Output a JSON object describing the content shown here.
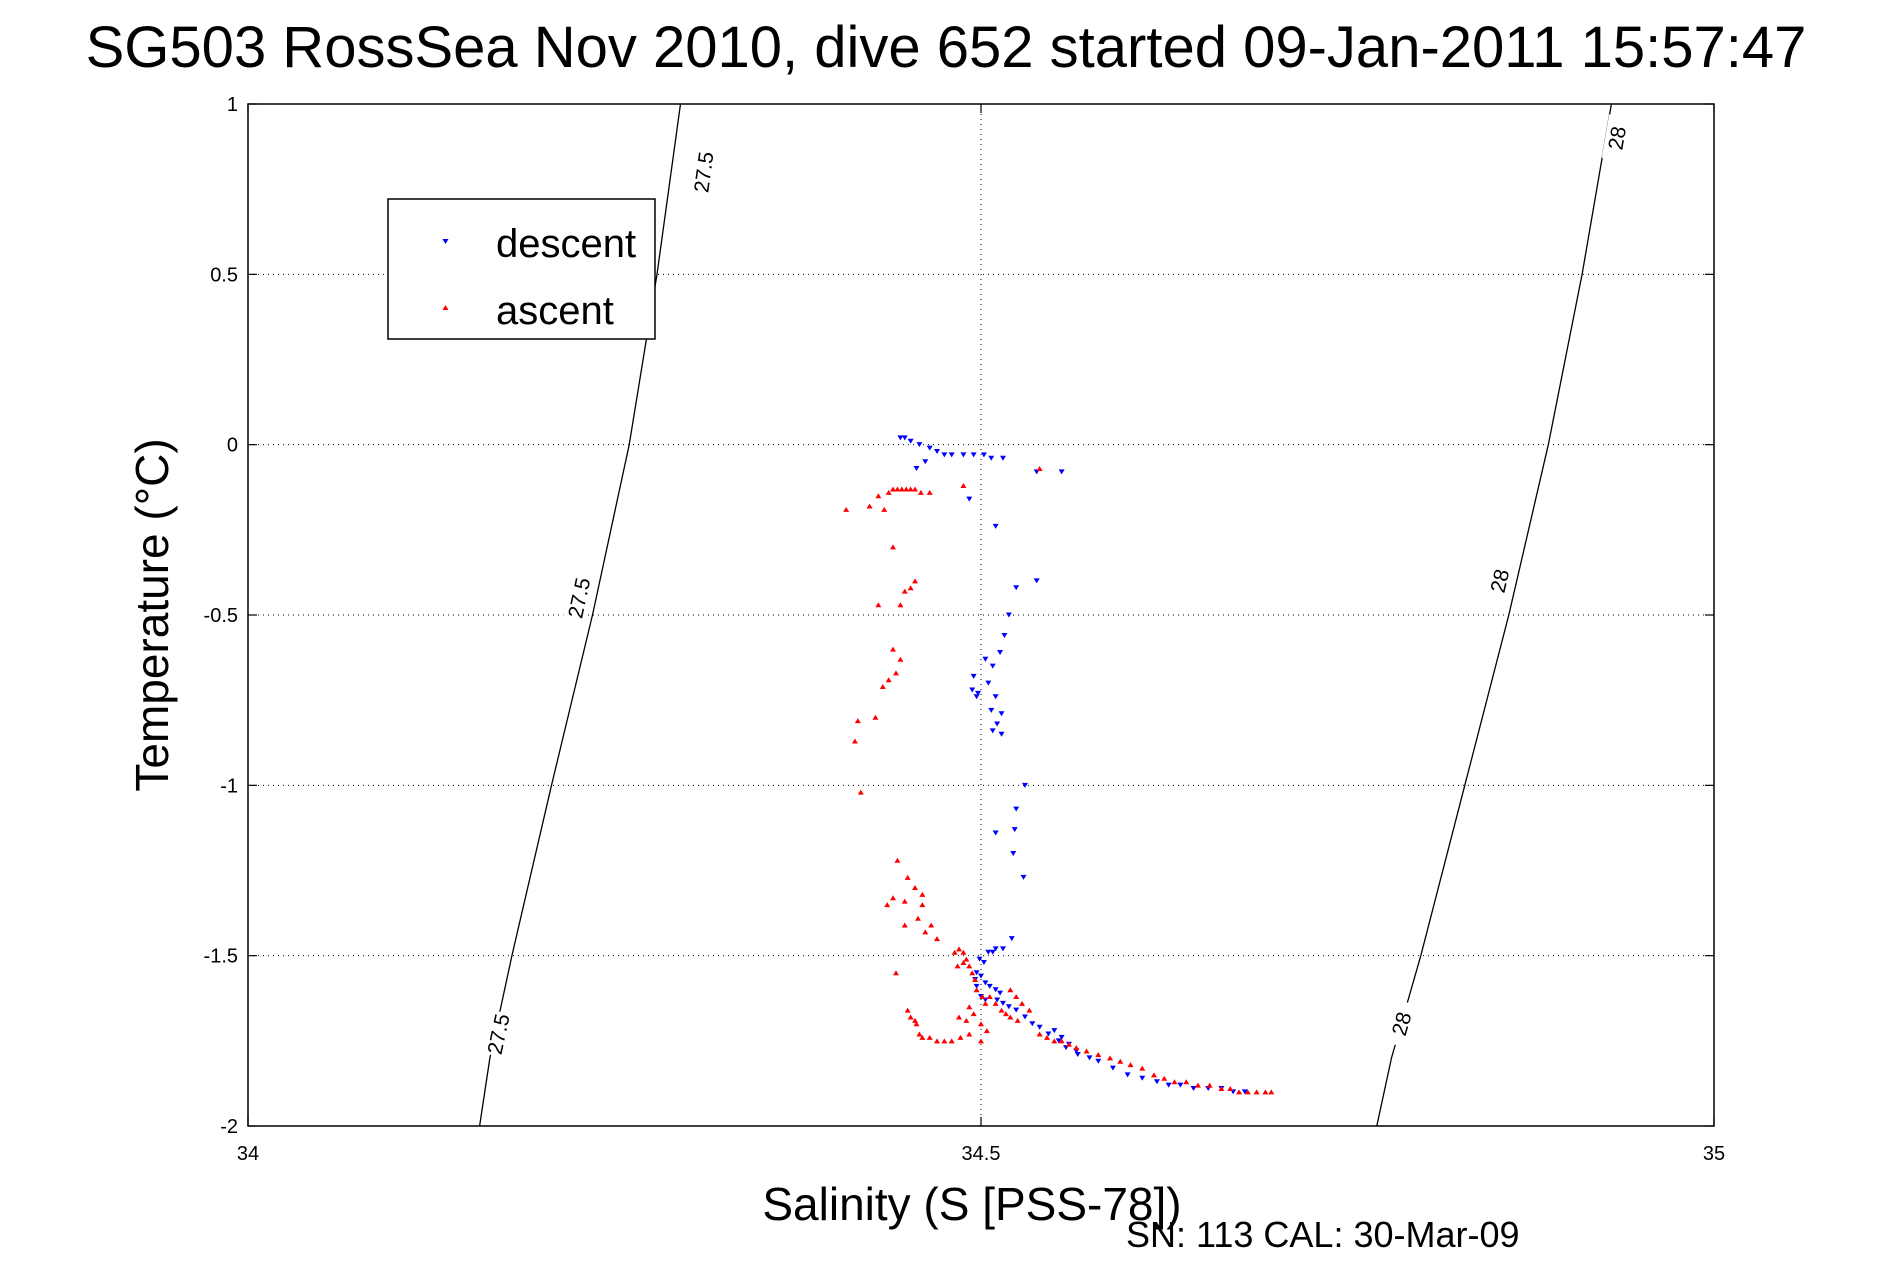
{
  "chart_data": {
    "type": "scatter",
    "title": "SG503 RossSea Nov 2010, dive 652 started 09-Jan-2011 15:57:47",
    "xlabel": "Salinity (S [PSS-78])",
    "ylabel": "Temperature (°C)",
    "xlim": [
      34,
      35
    ],
    "ylim": [
      -2,
      1
    ],
    "x_ticks": [
      "34",
      "34.5",
      "35"
    ],
    "y_ticks": [
      "-2",
      "-1.5",
      "-1",
      "-0.5",
      "0",
      "0.5",
      "1"
    ],
    "grid": true,
    "legend_position": "top-left",
    "footer": "SN: 113  CAL: 30-Mar-09",
    "contours": [
      {
        "level": "27.5",
        "points": [
          [
            34.158,
            -2
          ],
          [
            34.165,
            -1.8
          ],
          [
            34.18,
            -1.5
          ],
          [
            34.207,
            -1.0
          ],
          [
            34.235,
            -0.5
          ],
          [
            34.26,
            0.0
          ],
          [
            34.279,
            0.5
          ],
          [
            34.295,
            1.0
          ]
        ],
        "labels": [
          {
            "x": 34.171,
            "y": -1.73
          },
          {
            "x": 34.226,
            "y": -0.45
          },
          {
            "x": 34.311,
            "y": 0.8
          }
        ]
      },
      {
        "level": "28",
        "points": [
          [
            34.77,
            -2
          ],
          [
            34.78,
            -1.8
          ],
          [
            34.8,
            -1.5
          ],
          [
            34.83,
            -1.0
          ],
          [
            34.86,
            -0.5
          ],
          [
            34.887,
            0.0
          ],
          [
            34.91,
            0.5
          ],
          [
            34.93,
            1.0
          ]
        ],
        "labels": [
          {
            "x": 34.787,
            "y": -1.7
          },
          {
            "x": 34.854,
            "y": -0.4
          },
          {
            "x": 34.934,
            "y": 0.9
          }
        ]
      }
    ],
    "series": [
      {
        "name": "descent",
        "color": "#0000ff",
        "marker": "triangle-down",
        "points": [
          [
            34.445,
            0.02
          ],
          [
            34.448,
            0.02
          ],
          [
            34.452,
            0.01
          ],
          [
            34.458,
            0.0
          ],
          [
            34.465,
            -0.01
          ],
          [
            34.47,
            -0.02
          ],
          [
            34.475,
            -0.03
          ],
          [
            34.48,
            -0.03
          ],
          [
            34.488,
            -0.03
          ],
          [
            34.495,
            -0.03
          ],
          [
            34.502,
            -0.03
          ],
          [
            34.507,
            -0.04
          ],
          [
            34.515,
            -0.04
          ],
          [
            34.456,
            -0.07
          ],
          [
            34.462,
            -0.05
          ],
          [
            34.538,
            -0.08
          ],
          [
            34.555,
            -0.08
          ],
          [
            34.492,
            -0.16
          ],
          [
            34.51,
            -0.24
          ],
          [
            34.538,
            -0.4
          ],
          [
            34.524,
            -0.42
          ],
          [
            34.519,
            -0.5
          ],
          [
            34.516,
            -0.56
          ],
          [
            34.513,
            -0.61
          ],
          [
            34.503,
            -0.63
          ],
          [
            34.508,
            -0.65
          ],
          [
            34.495,
            -0.68
          ],
          [
            34.505,
            -0.7
          ],
          [
            34.494,
            -0.72
          ],
          [
            34.498,
            -0.73
          ],
          [
            34.497,
            -0.74
          ],
          [
            34.51,
            -0.74
          ],
          [
            34.514,
            -0.79
          ],
          [
            34.507,
            -0.78
          ],
          [
            34.511,
            -0.82
          ],
          [
            34.508,
            -0.84
          ],
          [
            34.514,
            -0.85
          ],
          [
            34.53,
            -1.0
          ],
          [
            34.524,
            -1.07
          ],
          [
            34.523,
            -1.13
          ],
          [
            34.51,
            -1.14
          ],
          [
            34.522,
            -1.2
          ],
          [
            34.529,
            -1.27
          ],
          [
            34.521,
            -1.45
          ],
          [
            34.515,
            -1.48
          ],
          [
            34.508,
            -1.49
          ],
          [
            34.505,
            -1.49
          ],
          [
            34.51,
            -1.48
          ],
          [
            34.499,
            -1.51
          ],
          [
            34.502,
            -1.52
          ],
          [
            34.497,
            -1.55
          ],
          [
            34.5,
            -1.56
          ],
          [
            34.496,
            -1.57
          ],
          [
            34.503,
            -1.58
          ],
          [
            34.497,
            -1.59
          ],
          [
            34.506,
            -1.59
          ],
          [
            34.51,
            -1.6
          ],
          [
            34.513,
            -1.61
          ],
          [
            34.5,
            -1.62
          ],
          [
            34.503,
            -1.63
          ],
          [
            34.511,
            -1.63
          ],
          [
            34.515,
            -1.64
          ],
          [
            34.519,
            -1.65
          ],
          [
            34.524,
            -1.66
          ],
          [
            34.53,
            -1.68
          ],
          [
            34.535,
            -1.7
          ],
          [
            34.54,
            -1.71
          ],
          [
            34.546,
            -1.73
          ],
          [
            34.553,
            -1.75
          ],
          [
            34.558,
            -1.77
          ],
          [
            34.565,
            -1.78
          ],
          [
            34.574,
            -1.8
          ],
          [
            34.58,
            -1.81
          ],
          [
            34.59,
            -1.83
          ],
          [
            34.6,
            -1.85
          ],
          [
            34.61,
            -1.86
          ],
          [
            34.62,
            -1.87
          ],
          [
            34.628,
            -1.88
          ],
          [
            34.636,
            -1.88
          ],
          [
            34.645,
            -1.89
          ],
          [
            34.655,
            -1.89
          ],
          [
            34.664,
            -1.89
          ],
          [
            34.672,
            -1.9
          ],
          [
            34.68,
            -1.9
          ],
          [
            34.55,
            -1.72
          ],
          [
            34.555,
            -1.74
          ],
          [
            34.56,
            -1.76
          ],
          [
            34.566,
            -1.79
          ]
        ]
      },
      {
        "name": "ascent",
        "color": "#ff0000",
        "marker": "triangle-up",
        "points": [
          [
            34.437,
            -0.14
          ],
          [
            34.44,
            -0.13
          ],
          [
            34.443,
            -0.13
          ],
          [
            34.446,
            -0.13
          ],
          [
            34.449,
            -0.13
          ],
          [
            34.452,
            -0.13
          ],
          [
            34.455,
            -0.13
          ],
          [
            34.459,
            -0.14
          ],
          [
            34.43,
            -0.15
          ],
          [
            34.434,
            -0.19
          ],
          [
            34.424,
            -0.18
          ],
          [
            34.408,
            -0.19
          ],
          [
            34.465,
            -0.14
          ],
          [
            34.488,
            -0.12
          ],
          [
            34.54,
            -0.07
          ],
          [
            34.44,
            -0.3
          ],
          [
            34.455,
            -0.4
          ],
          [
            34.452,
            -0.42
          ],
          [
            34.448,
            -0.43
          ],
          [
            34.445,
            -0.47
          ],
          [
            34.43,
            -0.47
          ],
          [
            34.44,
            -0.6
          ],
          [
            34.445,
            -0.63
          ],
          [
            34.442,
            -0.67
          ],
          [
            34.437,
            -0.69
          ],
          [
            34.433,
            -0.71
          ],
          [
            34.428,
            -0.8
          ],
          [
            34.416,
            -0.81
          ],
          [
            34.414,
            -0.87
          ],
          [
            34.418,
            -1.02
          ],
          [
            34.443,
            -1.22
          ],
          [
            34.45,
            -1.27
          ],
          [
            34.455,
            -1.3
          ],
          [
            34.46,
            -1.32
          ],
          [
            34.448,
            -1.34
          ],
          [
            34.44,
            -1.33
          ],
          [
            34.436,
            -1.35
          ],
          [
            34.46,
            -1.35
          ],
          [
            34.457,
            -1.39
          ],
          [
            34.466,
            -1.41
          ],
          [
            34.448,
            -1.41
          ],
          [
            34.462,
            -1.43
          ],
          [
            34.47,
            -1.45
          ],
          [
            34.482,
            -1.49
          ],
          [
            34.485,
            -1.48
          ],
          [
            34.488,
            -1.49
          ],
          [
            34.49,
            -1.51
          ],
          [
            34.492,
            -1.53
          ],
          [
            34.494,
            -1.55
          ],
          [
            34.488,
            -1.52
          ],
          [
            34.484,
            -1.53
          ],
          [
            34.442,
            -1.55
          ],
          [
            34.496,
            -1.57
          ],
          [
            34.497,
            -1.6
          ],
          [
            34.501,
            -1.62
          ],
          [
            34.506,
            -1.62
          ],
          [
            34.503,
            -1.64
          ],
          [
            34.51,
            -1.64
          ],
          [
            34.514,
            -1.66
          ],
          [
            34.517,
            -1.67
          ],
          [
            34.52,
            -1.68
          ],
          [
            34.525,
            -1.69
          ],
          [
            34.492,
            -1.65
          ],
          [
            34.495,
            -1.67
          ],
          [
            34.49,
            -1.69
          ],
          [
            34.485,
            -1.68
          ],
          [
            34.5,
            -1.7
          ],
          [
            34.504,
            -1.72
          ],
          [
            34.45,
            -1.66
          ],
          [
            34.452,
            -1.68
          ],
          [
            34.455,
            -1.69
          ],
          [
            34.456,
            -1.7
          ],
          [
            34.458,
            -1.73
          ],
          [
            34.46,
            -1.74
          ],
          [
            34.465,
            -1.74
          ],
          [
            34.47,
            -1.75
          ],
          [
            34.475,
            -1.75
          ],
          [
            34.48,
            -1.75
          ],
          [
            34.486,
            -1.74
          ],
          [
            34.492,
            -1.73
          ],
          [
            34.5,
            -1.75
          ],
          [
            34.54,
            -1.73
          ],
          [
            34.545,
            -1.74
          ],
          [
            34.55,
            -1.75
          ],
          [
            34.555,
            -1.75
          ],
          [
            34.56,
            -1.76
          ],
          [
            34.565,
            -1.77
          ],
          [
            34.572,
            -1.78
          ],
          [
            34.58,
            -1.79
          ],
          [
            34.588,
            -1.8
          ],
          [
            34.595,
            -1.81
          ],
          [
            34.602,
            -1.82
          ],
          [
            34.61,
            -1.83
          ],
          [
            34.618,
            -1.85
          ],
          [
            34.625,
            -1.86
          ],
          [
            34.632,
            -1.87
          ],
          [
            34.64,
            -1.87
          ],
          [
            34.648,
            -1.88
          ],
          [
            34.656,
            -1.88
          ],
          [
            34.664,
            -1.89
          ],
          [
            34.67,
            -1.89
          ],
          [
            34.676,
            -1.9
          ],
          [
            34.682,
            -1.9
          ],
          [
            34.688,
            -1.9
          ],
          [
            34.694,
            -1.9
          ],
          [
            34.698,
            -1.9
          ],
          [
            34.52,
            -1.6
          ],
          [
            34.524,
            -1.62
          ],
          [
            34.528,
            -1.64
          ],
          [
            34.533,
            -1.66
          ]
        ]
      }
    ]
  }
}
